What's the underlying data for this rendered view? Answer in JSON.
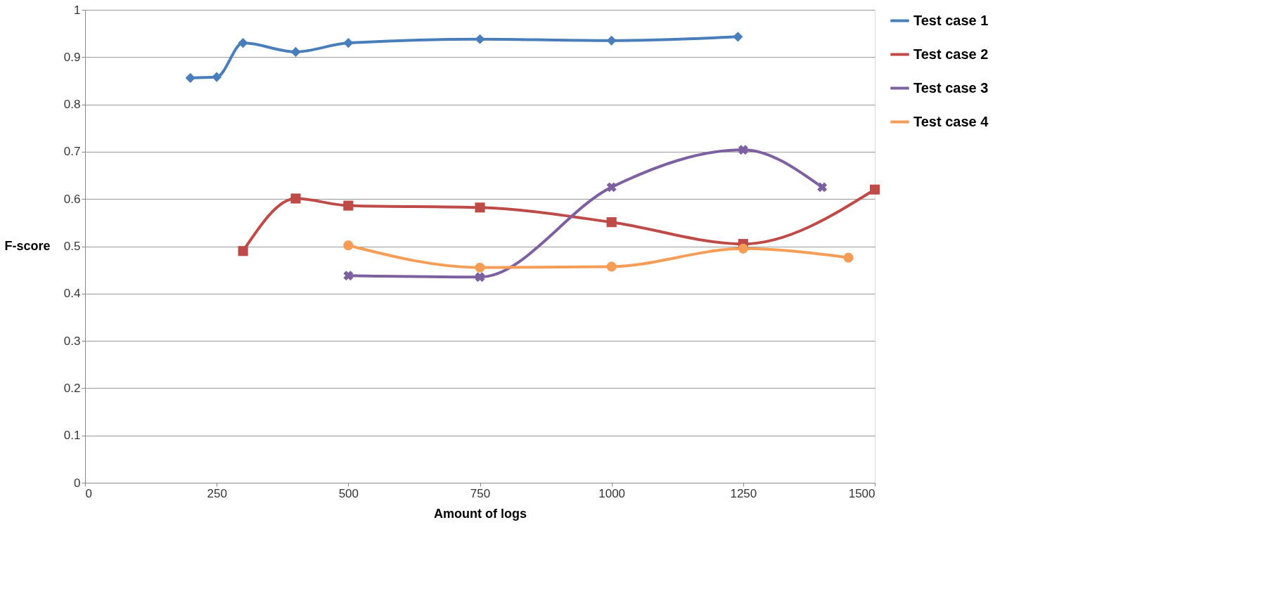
{
  "chart_data": {
    "type": "line",
    "xlabel": "Amount of logs",
    "ylabel": "F-score",
    "xlim": [
      0,
      1500
    ],
    "xticks": [
      0,
      250,
      500,
      750,
      1000,
      1250,
      1500
    ],
    "ylim": [
      0,
      1
    ],
    "yticks": [
      0,
      0.1,
      0.2,
      0.3,
      0.4,
      0.5,
      0.6,
      0.7,
      0.8,
      0.9,
      1
    ],
    "grid": "y",
    "legend": "right",
    "line_style": "solid",
    "series": [
      {
        "name": "Test case 1",
        "color": "#4a7ebb",
        "marker": "diamond",
        "x": [
          200,
          250,
          300,
          400,
          500,
          750,
          1000,
          1240
        ],
        "values": [
          0.856,
          0.858,
          0.93,
          0.911,
          0.93,
          0.938,
          0.935,
          0.943
        ]
      },
      {
        "name": "Test case 2",
        "color": "#be4b48",
        "marker": "square",
        "x": [
          300,
          400,
          500,
          750,
          1000,
          1250,
          1500
        ],
        "values": [
          0.49,
          0.601,
          0.586,
          0.582,
          0.551,
          0.505,
          0.62
        ]
      },
      {
        "name": "Test case 3",
        "color": "#7d60a0",
        "marker": "cross",
        "x": [
          500,
          750,
          1000,
          1250,
          1400
        ],
        "values": [
          0.438,
          0.435,
          0.625,
          0.704,
          0.625
        ]
      },
      {
        "name": "Test case 4",
        "color": "#f59d56",
        "marker": "circle",
        "x": [
          500,
          750,
          1000,
          1250,
          1450
        ],
        "values": [
          0.502,
          0.455,
          0.457,
          0.495,
          0.476
        ]
      }
    ]
  }
}
